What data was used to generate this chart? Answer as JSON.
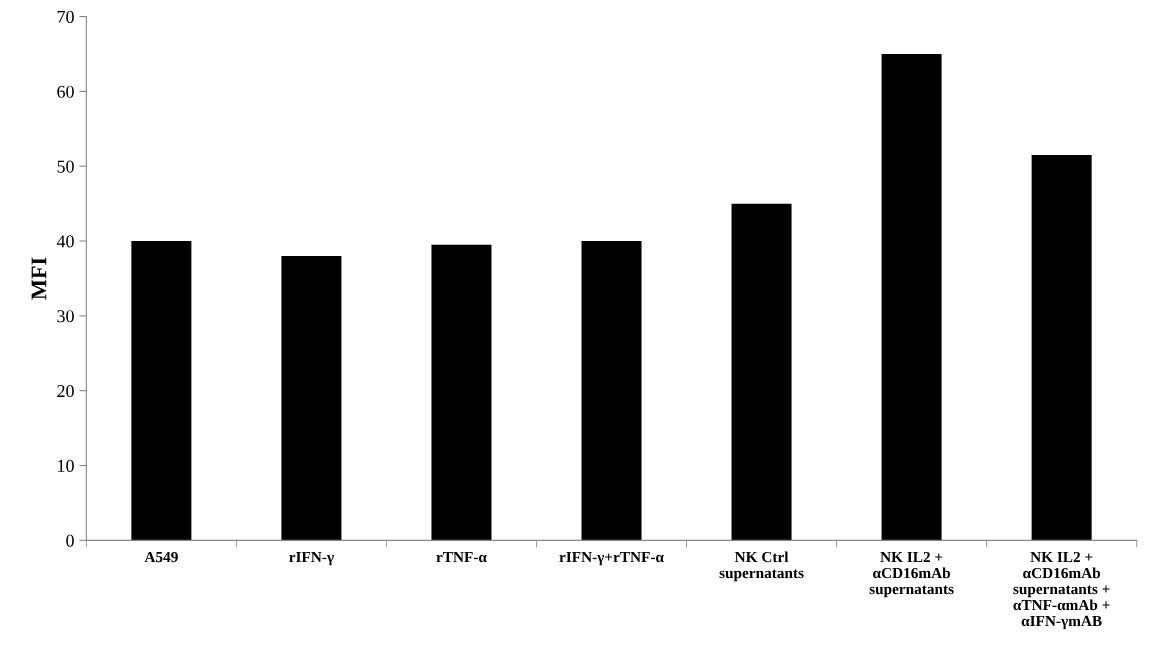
{
  "chart_data": {
    "type": "bar",
    "ylabel": "MFI",
    "categories": [
      "A549",
      "rIFN-γ",
      "rTNF-α",
      "rIFN-γ+rTNF-α",
      "NK Ctrl\nsupernatants",
      "NK IL2 +\nαCD16mAb\nsupernatants",
      "NK IL2 +\nαCD16mAb\nsupernatants +\nαTNF-αmAb +\nαIFN-γmAB"
    ],
    "values": [
      40,
      38,
      39.5,
      40,
      45,
      65,
      51.5
    ],
    "color": "#000000",
    "ylim": [
      0,
      70
    ],
    "yticks": [
      0,
      10,
      20,
      30,
      40,
      50,
      60,
      70
    ],
    "grid": false,
    "legend": false
  }
}
